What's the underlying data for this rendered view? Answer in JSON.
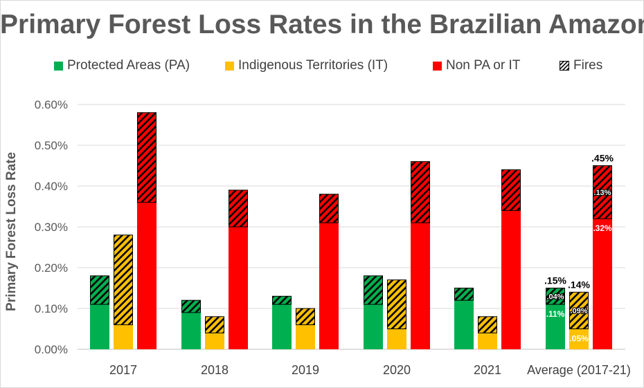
{
  "chart_data": {
    "type": "bar",
    "title": "Primary Forest Loss Rates in the Brazilian Amazon",
    "ylabel": "Primary Forest Loss Rate",
    "xlabel": "",
    "ylim": [
      0,
      0.6
    ],
    "yticks": [
      "0.00%",
      "0.10%",
      "0.20%",
      "0.30%",
      "0.40%",
      "0.50%",
      "0.60%"
    ],
    "grid": true,
    "legend_position": "top",
    "stacked": true,
    "categories": [
      "2017",
      "2018",
      "2019",
      "2020",
      "2021",
      "Average (2017-21)"
    ],
    "series": [
      {
        "name": "Protected Areas (PA)",
        "color": "#00b050",
        "base": [
          0.11,
          0.09,
          0.11,
          0.11,
          0.12,
          0.11
        ],
        "fires": [
          0.07,
          0.03,
          0.02,
          0.07,
          0.03,
          0.04
        ]
      },
      {
        "name": "Indigenous Territories (IT)",
        "color": "#ffc000",
        "base": [
          0.06,
          0.04,
          0.06,
          0.05,
          0.04,
          0.05
        ],
        "fires": [
          0.22,
          0.04,
          0.04,
          0.12,
          0.04,
          0.09
        ]
      },
      {
        "name": "Non PA or IT",
        "color": "#ff0000",
        "base": [
          0.36,
          0.3,
          0.31,
          0.31,
          0.34,
          0.32
        ],
        "fires": [
          0.22,
          0.09,
          0.07,
          0.15,
          0.1,
          0.13
        ]
      }
    ],
    "fires_legend": "Fires",
    "average_labels": {
      "totals": [
        ".15%",
        ".14%",
        ".45%"
      ],
      "fires": [
        ".04%",
        ".09%",
        ".13%"
      ],
      "base": [
        ".11%",
        ".05%",
        ".32%"
      ]
    }
  }
}
